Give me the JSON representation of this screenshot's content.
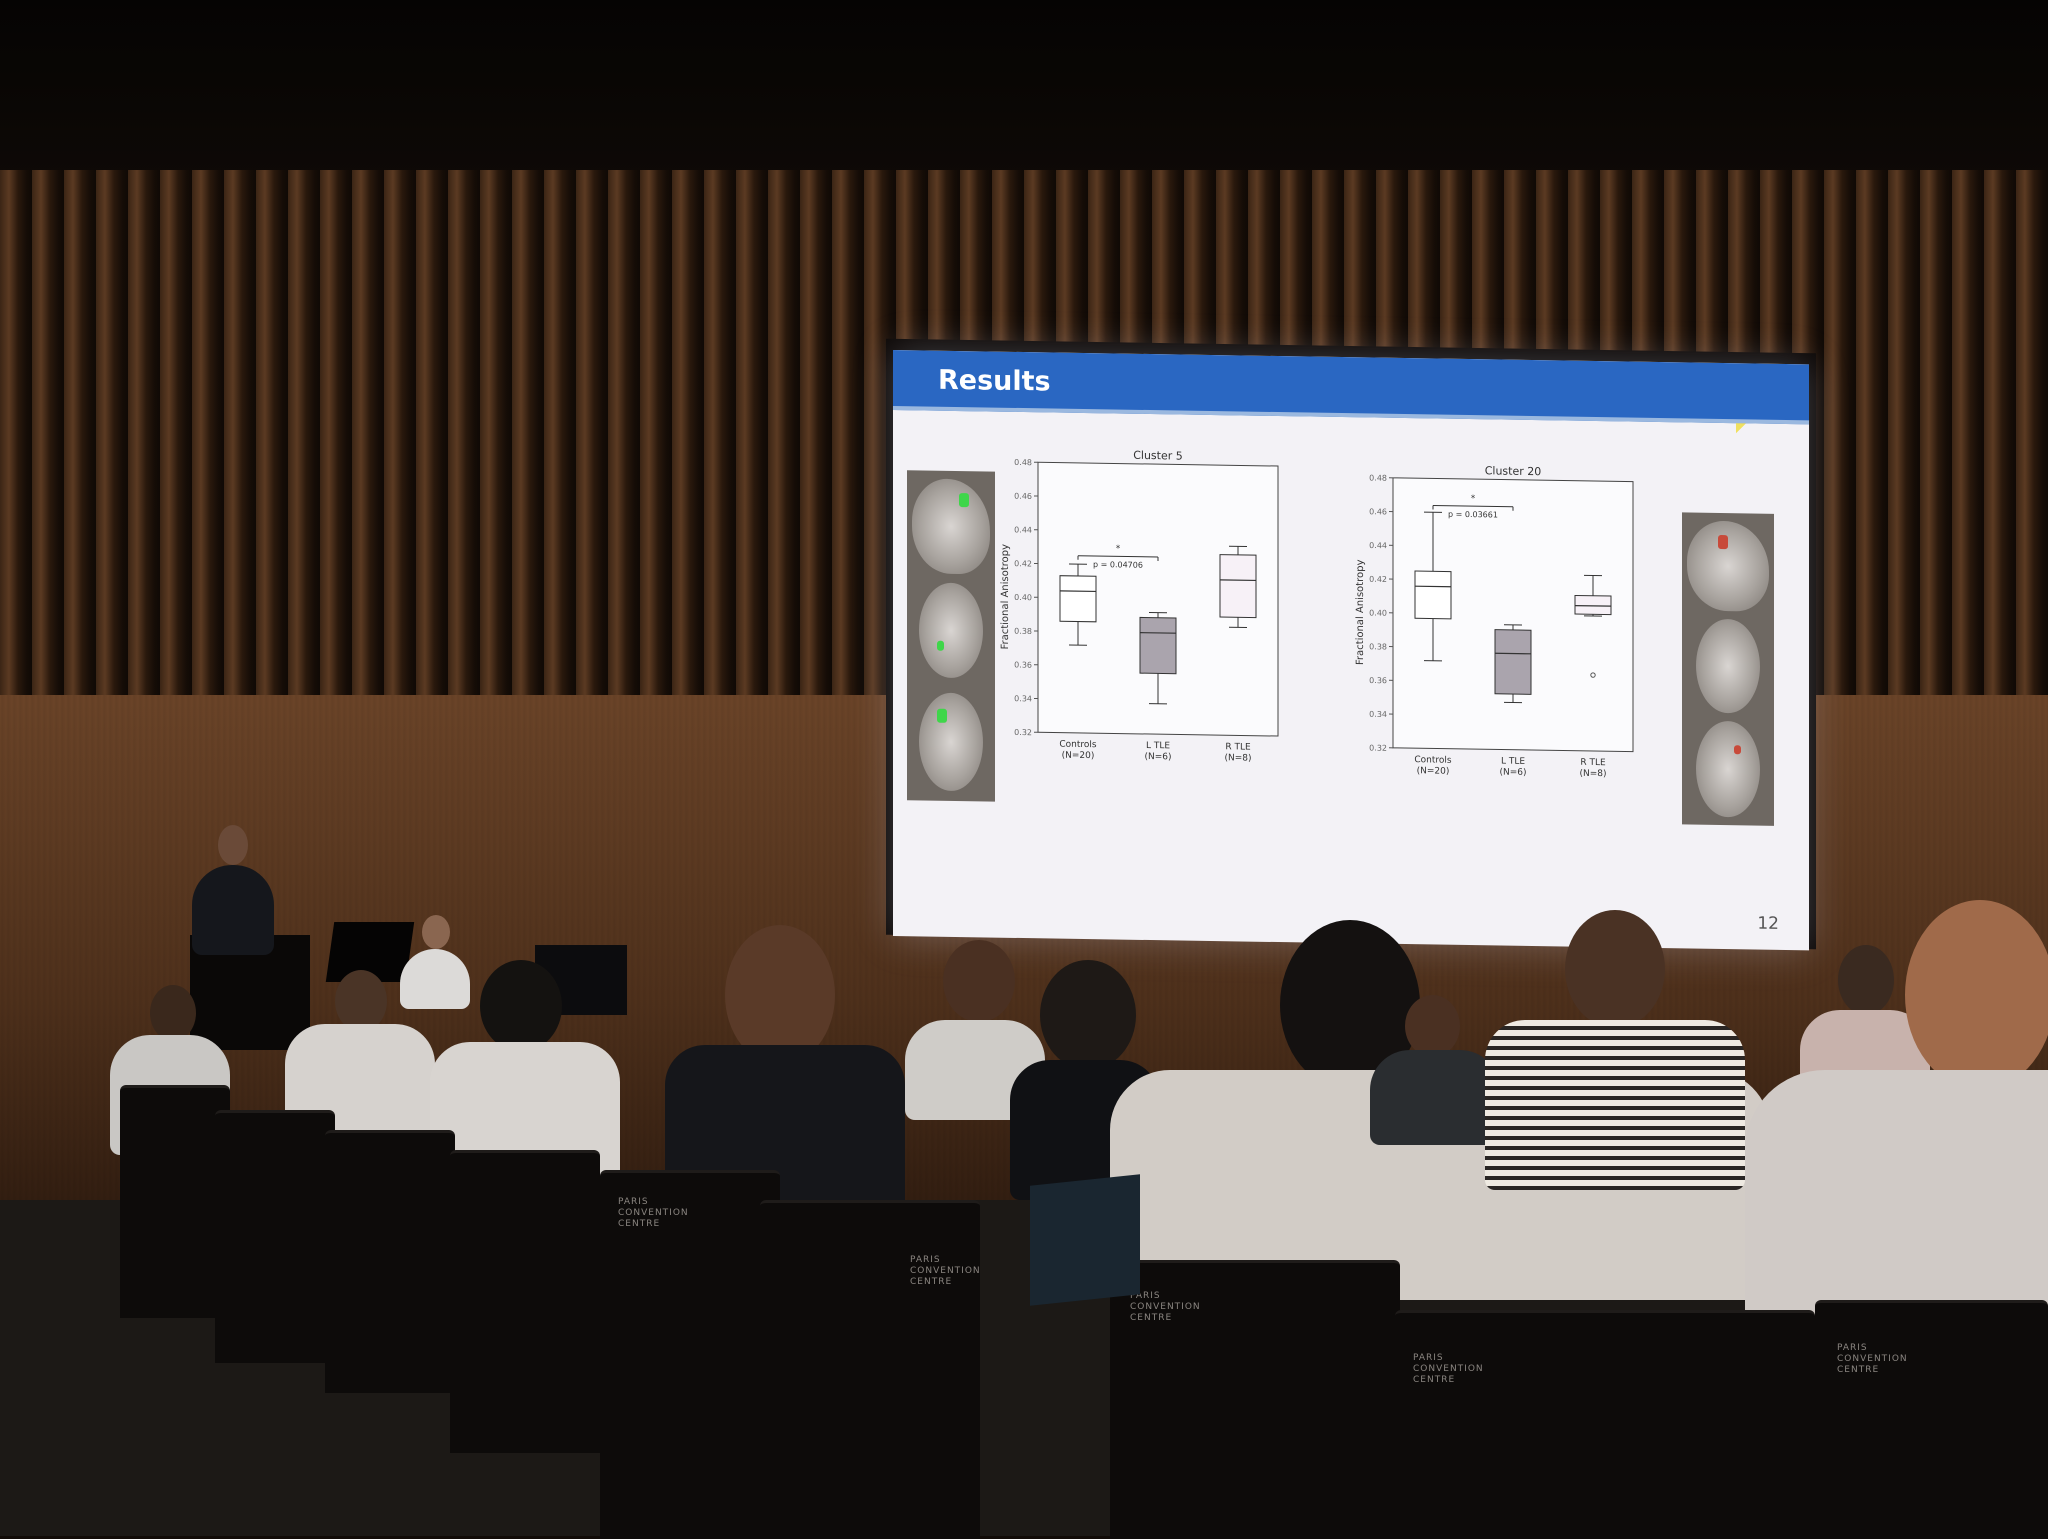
{
  "slide": {
    "title": "Results",
    "page_number": "12",
    "header_color": "#2a67c2"
  },
  "chart_data": [
    {
      "type": "box",
      "title": "Cluster 5",
      "ylabel": "Fractional Anisotropy",
      "ylim": [
        0.32,
        0.48
      ],
      "yticks": [
        "0.32",
        "0.34",
        "0.36",
        "0.38",
        "0.40",
        "0.42",
        "0.44",
        "0.46",
        "0.48"
      ],
      "categories": [
        "Controls\n(N=20)",
        "L TLE\n(N=6)",
        "R TLE\n(N=8)"
      ],
      "boxes": [
        {
          "whisker_low": 0.372,
          "q1": 0.386,
          "median": 0.404,
          "q3": 0.413,
          "whisker_high": 0.42,
          "fill": "#ffffff",
          "outliers": []
        },
        {
          "whisker_low": 0.338,
          "q1": 0.356,
          "median": 0.38,
          "q3": 0.389,
          "whisker_high": 0.392,
          "fill": "#aaa4ad",
          "outliers": []
        },
        {
          "whisker_low": 0.384,
          "q1": 0.39,
          "median": 0.412,
          "q3": 0.427,
          "whisker_high": 0.432,
          "fill": "#f7f1f7",
          "outliers": []
        }
      ],
      "annotation": {
        "text": "p = 0.04706",
        "star": "*",
        "from": 0,
        "to": 1,
        "y": 0.425
      }
    },
    {
      "type": "box",
      "title": "Cluster 20",
      "ylabel": "Fractional Anisotropy",
      "ylim": [
        0.32,
        0.48
      ],
      "yticks": [
        "0.32",
        "0.34",
        "0.36",
        "0.38",
        "0.40",
        "0.42",
        "0.44",
        "0.46",
        "0.48"
      ],
      "categories": [
        "Controls\n(N=20)",
        "L TLE\n(N=6)",
        "R TLE\n(N=8)"
      ],
      "boxes": [
        {
          "whisker_low": 0.372,
          "q1": 0.397,
          "median": 0.416,
          "q3": 0.425,
          "whisker_high": 0.46,
          "fill": "#ffffff",
          "outliers": []
        },
        {
          "whisker_low": 0.348,
          "q1": 0.353,
          "median": 0.377,
          "q3": 0.391,
          "whisker_high": 0.394,
          "fill": "#aaa4ad",
          "outliers": []
        },
        {
          "whisker_low": 0.4,
          "q1": 0.401,
          "median": 0.406,
          "q3": 0.412,
          "whisker_high": 0.424,
          "fill": "#f7f1f7",
          "outliers": [
            0.365
          ]
        }
      ],
      "annotation": {
        "text": "p = 0.03661",
        "star": "*",
        "from": 0,
        "to": 1,
        "y": 0.464
      }
    }
  ],
  "scene": {
    "chair_label": "PARIS CONVENTION CENTRE",
    "spot_green": "#3fd64a",
    "spot_red": "#c84a3a"
  }
}
